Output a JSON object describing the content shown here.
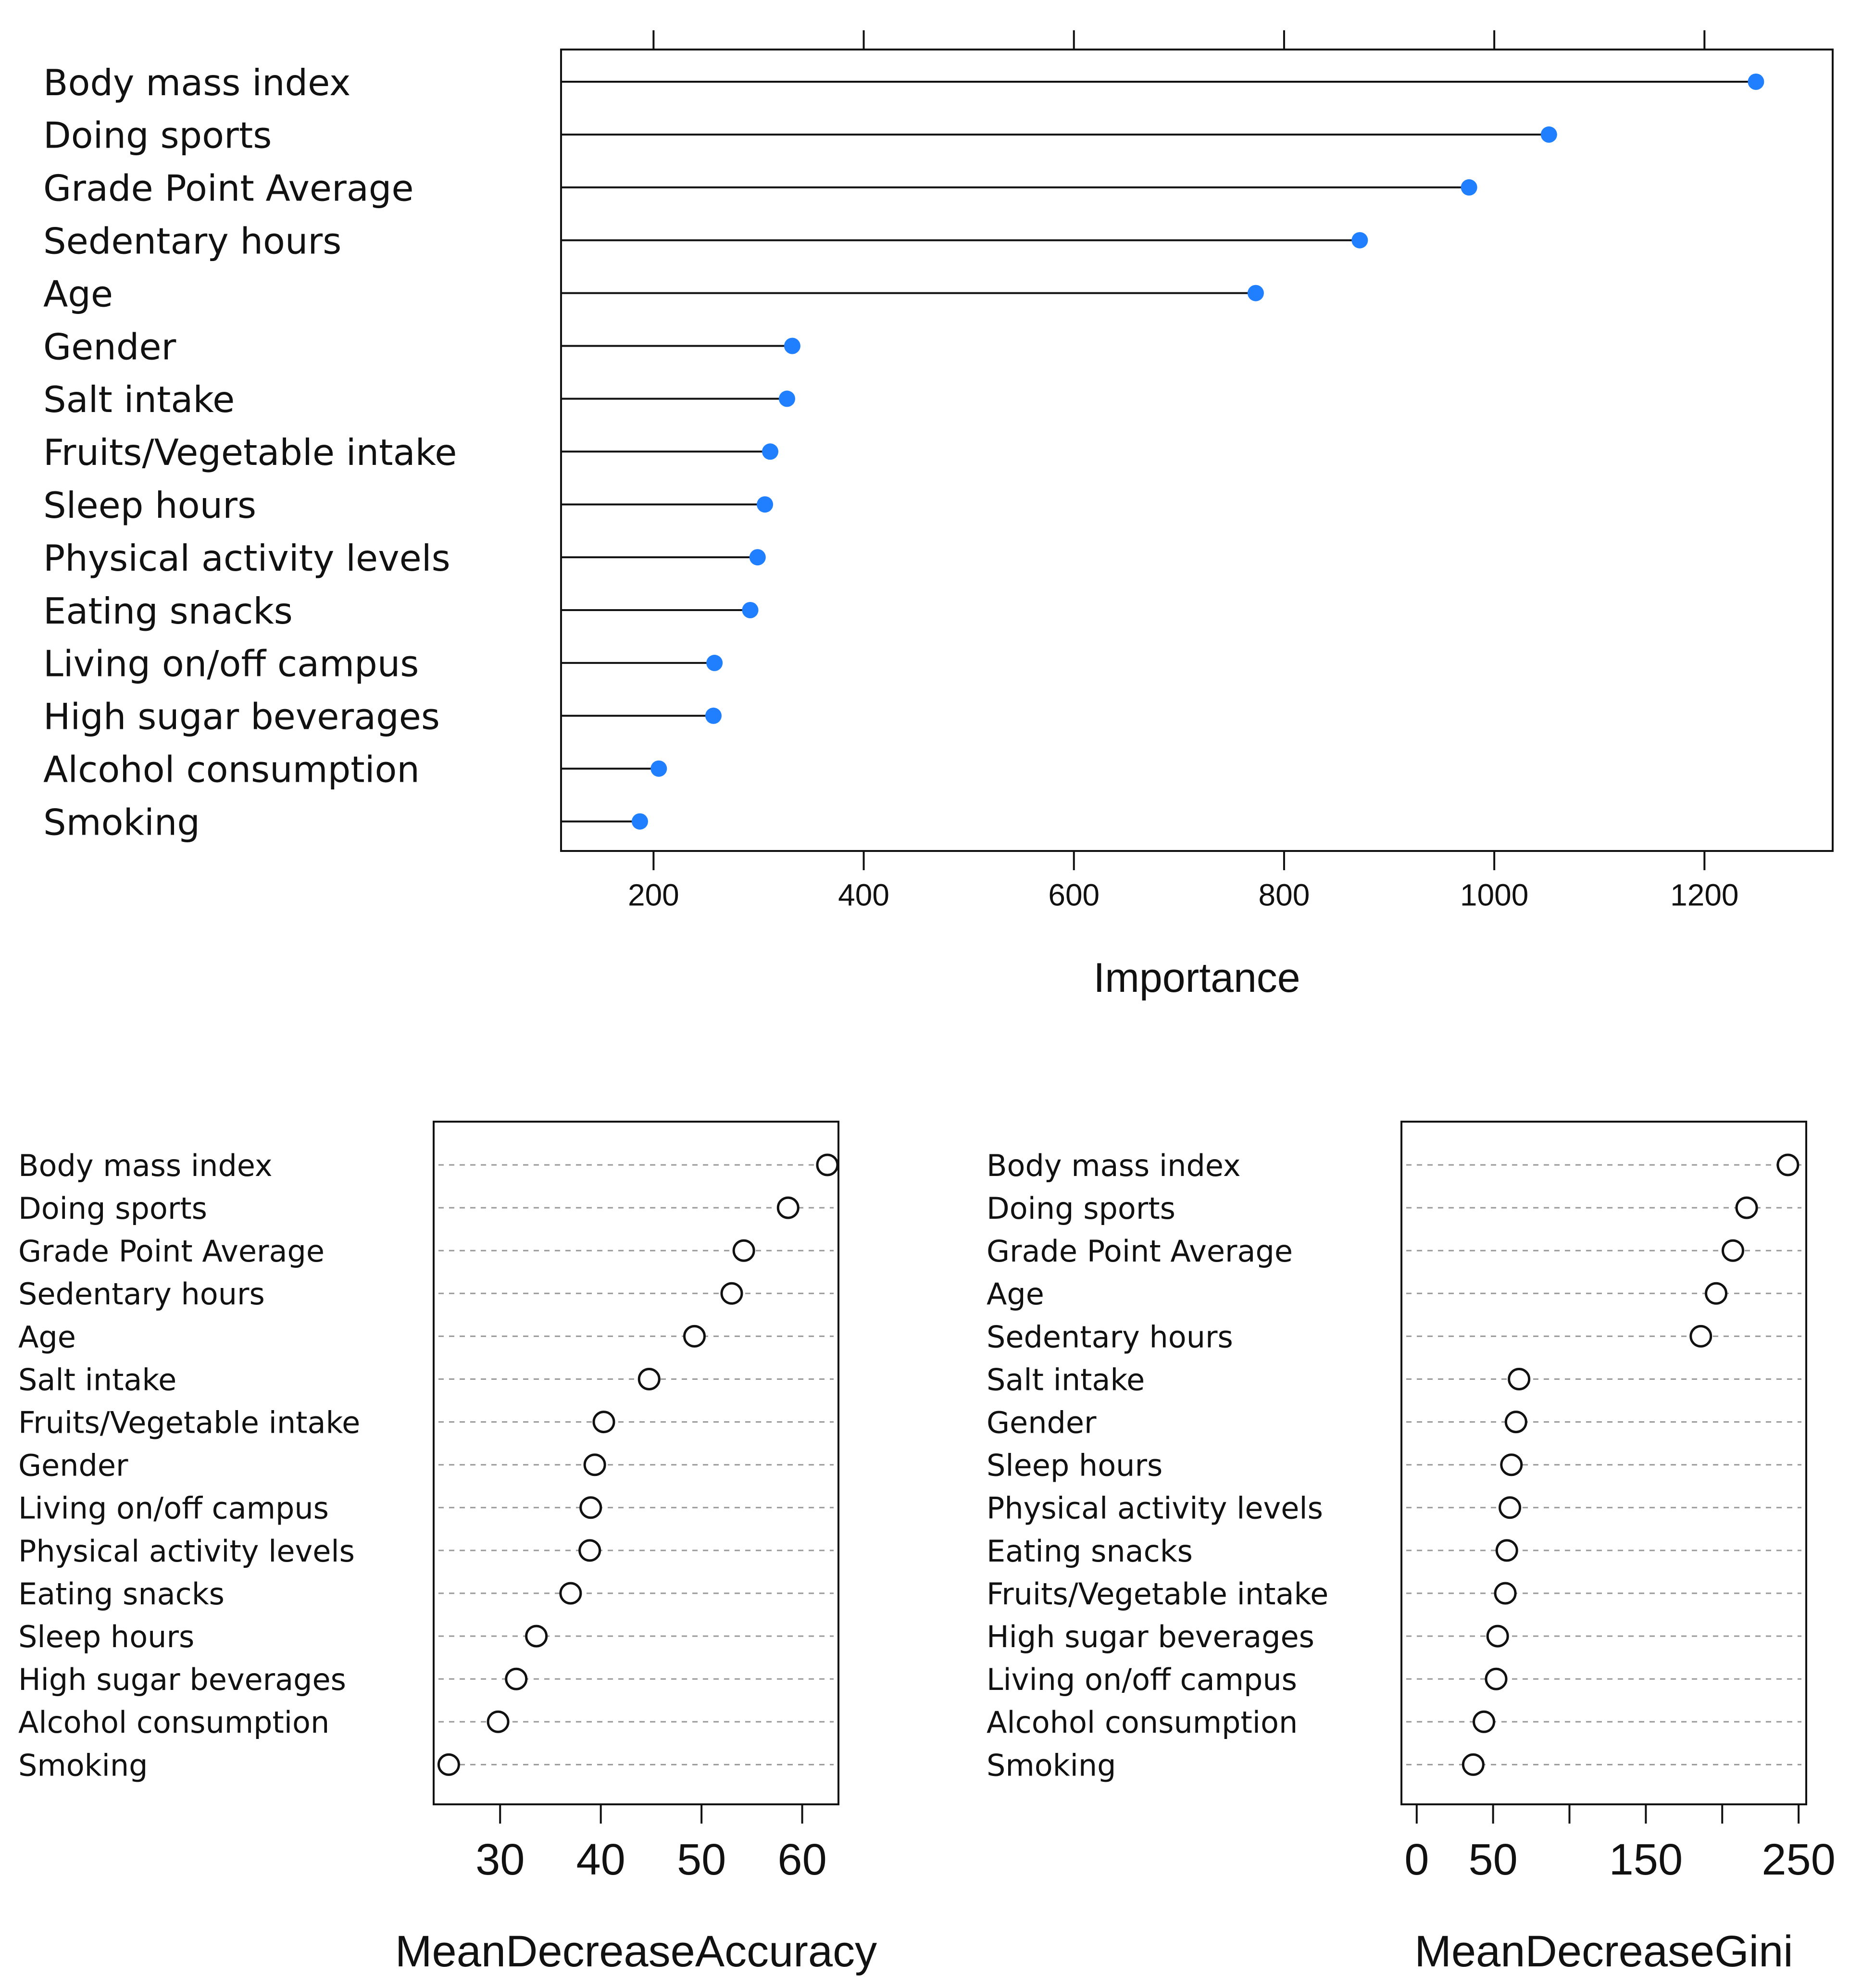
{
  "chart_data": [
    {
      "type": "lollipop",
      "xlabel": "Importance",
      "xlim": [
        112,
        1322
      ],
      "xticks": [
        200,
        400,
        600,
        800,
        1000,
        1200
      ],
      "marker_color": "#1f7fff",
      "categories": [
        "Body mass index",
        "Doing sports",
        "Grade Point Average",
        "Sedentary hours",
        "Age",
        "Gender",
        "Salt intake",
        "Fruits/Vegetable intake",
        "Sleep hours",
        "Physical activity levels",
        "Eating snacks",
        "Living on/off campus",
        "High sugar beverages",
        "Alcohol consumption",
        "Smoking"
      ],
      "values": [
        1249,
        1052,
        976,
        872,
        773,
        332,
        327,
        311,
        306,
        299,
        292,
        258,
        257,
        205,
        187
      ]
    },
    {
      "type": "dotplot",
      "xlabel": "MeanDecreaseAccuracy",
      "xlim": [
        23.4,
        63.6
      ],
      "xticks": [
        30,
        40,
        50,
        60
      ],
      "categories": [
        "Body mass index",
        "Doing sports",
        "Grade Point Average",
        "Sedentary hours",
        "Age",
        "Salt intake",
        "Fruits/Vegetable intake",
        "Gender",
        "Living on/off campus",
        "Physical activity levels",
        "Eating snacks",
        "Sleep hours",
        "High sugar beverages",
        "Alcohol consumption",
        "Smoking"
      ],
      "values": [
        62.5,
        58.6,
        54.2,
        53.0,
        49.3,
        44.8,
        40.3,
        39.4,
        39.0,
        38.9,
        37.0,
        33.6,
        31.6,
        29.8,
        24.9
      ]
    },
    {
      "type": "dotplot",
      "xlabel": "MeanDecreaseGini",
      "xlim": [
        -10,
        255
      ],
      "xticks": [
        0,
        50,
        100,
        150,
        200,
        250
      ],
      "tick_labels": [
        "0",
        "50",
        "",
        "150",
        "",
        "250"
      ],
      "categories": [
        "Body mass index",
        "Doing sports",
        "Grade Point Average",
        "Age",
        "Sedentary hours",
        "Salt intake",
        "Gender",
        "Sleep hours",
        "Physical activity levels",
        "Eating snacks",
        "Fruits/Vegetable intake",
        "High sugar beverages",
        "Living on/off campus",
        "Alcohol consumption",
        "Smoking"
      ],
      "values": [
        243,
        216,
        207,
        196,
        186,
        67,
        65,
        62,
        61,
        59,
        58,
        53,
        52,
        44,
        37
      ]
    }
  ]
}
